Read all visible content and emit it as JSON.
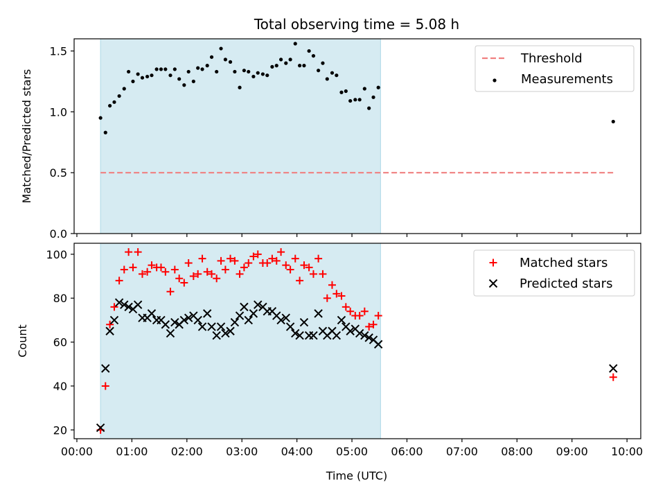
{
  "title": "Total observing time = 5.08 h",
  "xlabel": "Time (UTC)",
  "x_tick_labels": [
    "00:00",
    "01:00",
    "02:00",
    "03:00",
    "04:00",
    "05:00",
    "06:00",
    "07:00",
    "08:00",
    "09:00",
    "10:00"
  ],
  "colors": {
    "shade": "#add8e6",
    "threshold": "#f08080",
    "matched": "#ff0000",
    "predicted": "#000000",
    "measurement": "#000000"
  },
  "chart_data": [
    {
      "type": "scatter",
      "ylabel": "Matched/Predicted stars",
      "xlim_hours": [
        -0.05,
        10.25
      ],
      "ylim": [
        0,
        1.6
      ],
      "y_ticks": [
        0.0,
        0.5,
        1.0,
        1.5
      ],
      "y_tick_labels": [
        "0.0",
        "0.5",
        "1.0",
        "1.5"
      ],
      "shaded_span_hours": [
        0.43,
        5.52
      ],
      "legend_position": "top-right",
      "threshold": {
        "name": "Threshold",
        "value": 0.5,
        "x_start": 0.43,
        "x_end": 9.75
      },
      "series": [
        {
          "name": "Measurements",
          "marker": "dot",
          "x": [
            0.43,
            0.52,
            0.6,
            0.68,
            0.77,
            0.86,
            0.94,
            1.02,
            1.11,
            1.19,
            1.28,
            1.36,
            1.45,
            1.53,
            1.61,
            1.7,
            1.78,
            1.86,
            1.95,
            2.03,
            2.12,
            2.2,
            2.28,
            2.37,
            2.45,
            2.54,
            2.62,
            2.7,
            2.79,
            2.87,
            2.96,
            3.04,
            3.12,
            3.21,
            3.29,
            3.38,
            3.46,
            3.55,
            3.63,
            3.71,
            3.8,
            3.88,
            3.97,
            4.05,
            4.13,
            4.22,
            4.3,
            4.39,
            4.47,
            4.55,
            4.64,
            4.72,
            4.81,
            4.89,
            4.97,
            5.06,
            5.14,
            5.23,
            5.31,
            5.39,
            5.48,
            9.75
          ],
          "y": [
            0.95,
            0.83,
            1.05,
            1.08,
            1.13,
            1.19,
            1.33,
            1.25,
            1.31,
            1.28,
            1.29,
            1.3,
            1.35,
            1.35,
            1.35,
            1.3,
            1.35,
            1.27,
            1.22,
            1.33,
            1.25,
            1.36,
            1.35,
            1.38,
            1.45,
            1.33,
            1.52,
            1.43,
            1.41,
            1.33,
            1.2,
            1.34,
            1.33,
            1.29,
            1.32,
            1.31,
            1.3,
            1.37,
            1.38,
            1.43,
            1.4,
            1.43,
            1.56,
            1.38,
            1.38,
            1.5,
            1.46,
            1.34,
            1.4,
            1.27,
            1.32,
            1.3,
            1.16,
            1.17,
            1.09,
            1.1,
            1.1,
            1.19,
            1.03,
            1.12,
            1.2,
            0.92
          ]
        }
      ]
    },
    {
      "type": "scatter",
      "ylabel": "Count",
      "xlabel": "Time (UTC)",
      "xlim_hours": [
        -0.05,
        10.25
      ],
      "ylim": [
        16,
        105
      ],
      "y_ticks": [
        20,
        40,
        60,
        80,
        100
      ],
      "y_tick_labels": [
        "20",
        "40",
        "60",
        "80",
        "100"
      ],
      "shaded_span_hours": [
        0.43,
        5.52
      ],
      "legend_position": "top-right",
      "series": [
        {
          "name": "Matched stars",
          "marker": "plus",
          "x": [
            0.43,
            0.52,
            0.6,
            0.68,
            0.77,
            0.86,
            0.94,
            1.02,
            1.11,
            1.19,
            1.28,
            1.36,
            1.45,
            1.53,
            1.61,
            1.7,
            1.78,
            1.86,
            1.95,
            2.03,
            2.12,
            2.2,
            2.28,
            2.37,
            2.45,
            2.54,
            2.62,
            2.7,
            2.79,
            2.87,
            2.96,
            3.04,
            3.12,
            3.21,
            3.29,
            3.38,
            3.46,
            3.55,
            3.63,
            3.71,
            3.8,
            3.88,
            3.97,
            4.05,
            4.13,
            4.22,
            4.3,
            4.39,
            4.47,
            4.55,
            4.64,
            4.72,
            4.81,
            4.89,
            4.97,
            5.06,
            5.14,
            5.23,
            5.31,
            5.39,
            5.48,
            9.75
          ],
          "y": [
            20,
            40,
            68,
            76,
            88,
            93,
            101,
            94,
            101,
            91,
            92,
            95,
            94,
            94,
            92,
            83,
            93,
            89,
            87,
            96,
            90,
            91,
            98,
            92,
            91,
            89,
            97,
            93,
            98,
            97,
            91,
            94,
            96,
            99,
            100,
            96,
            96,
            98,
            97,
            101,
            95,
            93,
            98,
            88,
            95,
            94,
            91,
            98,
            91,
            80,
            86,
            82,
            81,
            76,
            74,
            72,
            72,
            74,
            67,
            68,
            72,
            44
          ]
        },
        {
          "name": "Predicted stars",
          "marker": "x",
          "x": [
            0.43,
            0.52,
            0.6,
            0.68,
            0.77,
            0.86,
            0.94,
            1.02,
            1.11,
            1.19,
            1.28,
            1.36,
            1.45,
            1.53,
            1.61,
            1.7,
            1.78,
            1.86,
            1.95,
            2.03,
            2.12,
            2.2,
            2.28,
            2.37,
            2.45,
            2.54,
            2.62,
            2.7,
            2.79,
            2.87,
            2.96,
            3.04,
            3.12,
            3.21,
            3.29,
            3.38,
            3.46,
            3.55,
            3.63,
            3.71,
            3.8,
            3.88,
            3.97,
            4.05,
            4.13,
            4.22,
            4.3,
            4.39,
            4.47,
            4.55,
            4.64,
            4.72,
            4.81,
            4.89,
            4.97,
            5.06,
            5.14,
            5.23,
            5.31,
            5.39,
            5.48,
            9.75
          ],
          "y": [
            21,
            48,
            65,
            70,
            78,
            77,
            76,
            75,
            77,
            71,
            71,
            73,
            70,
            70,
            68,
            64,
            69,
            68,
            70,
            71,
            72,
            70,
            67,
            73,
            67,
            63,
            67,
            64,
            65,
            69,
            72,
            76,
            70,
            73,
            77,
            76,
            74,
            74,
            72,
            70,
            71,
            67,
            64,
            63,
            69,
            63,
            63,
            73,
            65,
            63,
            65,
            63,
            70,
            67,
            65,
            66,
            64,
            63,
            62,
            61,
            59,
            48
          ]
        }
      ]
    }
  ]
}
